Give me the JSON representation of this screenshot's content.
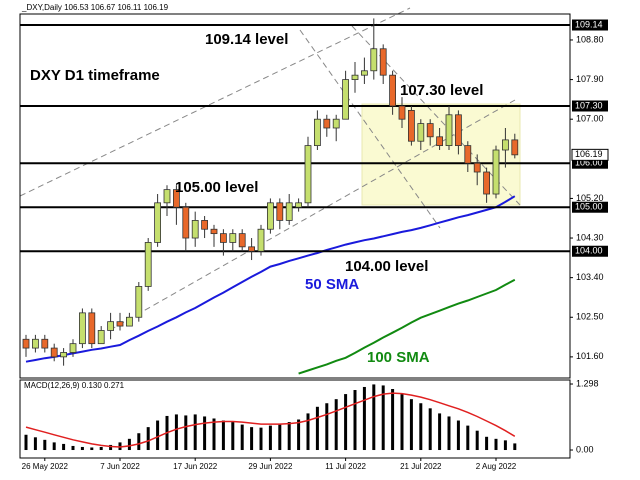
{
  "chart_data": {
    "type": "candlestick",
    "title": "_DXY,Daily  106.53 106.67 106.11 106.19",
    "subtitle": "DXY D1 timeframe",
    "categories": [
      null,
      null,
      "26 May 2022",
      null,
      null,
      null,
      null,
      null,
      null,
      null,
      "7 Jun 2022",
      null,
      null,
      null,
      null,
      null,
      null,
      null,
      "17 Jun 2022",
      null,
      null,
      null,
      null,
      null,
      null,
      null,
      "29 Jun 2022",
      null,
      null,
      null,
      null,
      null,
      null,
      null,
      "11 Jul 2022",
      null,
      null,
      null,
      null,
      null,
      null,
      null,
      "21 Jul 2022",
      null,
      null,
      null,
      null,
      null,
      null,
      null,
      "2 Aug 2022",
      null,
      null
    ],
    "open": [
      102.0,
      101.8,
      102.0,
      101.8,
      101.6,
      101.7,
      101.9,
      102.6,
      101.9,
      102.2,
      102.4,
      102.3,
      102.5,
      103.2,
      104.2,
      105.1,
      105.4,
      105.0,
      104.3,
      104.7,
      104.5,
      104.4,
      104.2,
      104.4,
      104.1,
      104.0,
      104.5,
      105.1,
      104.7,
      105.0,
      105.1,
      106.4,
      107.0,
      106.8,
      107.0,
      107.9,
      108.0,
      108.1,
      108.6,
      108.0,
      107.3,
      107.2,
      106.5,
      106.9,
      106.6,
      106.4,
      107.1,
      106.4,
      106.0,
      105.8,
      105.3,
      106.3,
      106.53
    ],
    "high": [
      102.1,
      102.1,
      102.1,
      101.9,
      101.8,
      102.0,
      102.7,
      102.7,
      102.3,
      102.6,
      102.6,
      102.6,
      103.3,
      104.3,
      105.3,
      105.5,
      105.5,
      105.1,
      104.9,
      104.8,
      104.6,
      104.5,
      104.5,
      104.5,
      104.3,
      104.6,
      105.2,
      105.2,
      105.3,
      105.2,
      106.6,
      107.2,
      107.1,
      107.1,
      108.1,
      108.3,
      108.4,
      109.29,
      108.7,
      108.1,
      107.5,
      107.3,
      107.0,
      107.0,
      106.8,
      107.3,
      107.2,
      106.5,
      106.2,
      105.9,
      106.4,
      106.8,
      106.67
    ],
    "low": [
      101.6,
      101.7,
      101.7,
      101.5,
      101.4,
      101.6,
      101.8,
      101.8,
      101.9,
      102.0,
      102.2,
      102.3,
      102.4,
      103.1,
      104.1,
      104.8,
      104.6,
      104.0,
      104.1,
      104.3,
      104.1,
      103.9,
      104.0,
      104.0,
      103.8,
      103.9,
      104.4,
      104.5,
      104.6,
      104.9,
      105.0,
      106.3,
      106.6,
      106.5,
      107.0,
      107.6,
      107.8,
      107.9,
      107.8,
      107.1,
      106.8,
      106.4,
      106.3,
      106.4,
      106.3,
      106.3,
      106.2,
      105.8,
      105.5,
      105.1,
      105.2,
      105.9,
      106.11
    ],
    "close": [
      101.8,
      102.0,
      101.8,
      101.6,
      101.7,
      101.9,
      102.6,
      101.9,
      102.2,
      102.4,
      102.3,
      102.5,
      103.2,
      104.2,
      105.1,
      105.4,
      105.0,
      104.3,
      104.7,
      104.5,
      104.4,
      104.2,
      104.4,
      104.1,
      104.0,
      104.5,
      105.1,
      104.7,
      105.1,
      105.1,
      106.4,
      107.0,
      106.8,
      107.0,
      107.9,
      108.0,
      108.1,
      108.6,
      108.0,
      107.3,
      107.0,
      106.5,
      106.9,
      106.6,
      106.4,
      107.1,
      106.4,
      106.0,
      105.8,
      105.3,
      106.3,
      106.53,
      106.19
    ],
    "up_color": "#c5df6e",
    "down_color": "#e8682a",
    "series": [
      {
        "name": "50 SMA",
        "color": "#1a1adc",
        "values": [
          101.49,
          101.53,
          101.57,
          101.6,
          101.64,
          101.68,
          101.72,
          101.76,
          101.79,
          101.83,
          101.87,
          101.98,
          102.08,
          102.19,
          102.29,
          102.4,
          102.5,
          102.61,
          102.71,
          102.83,
          102.95,
          103.06,
          103.18,
          103.3,
          103.42,
          103.53,
          103.65,
          103.71,
          103.78,
          103.84,
          103.9,
          103.96,
          104.03,
          104.09,
          104.15,
          104.2,
          104.25,
          104.29,
          104.34,
          104.39,
          104.44,
          104.48,
          104.53,
          104.59,
          104.65,
          104.71,
          104.77,
          104.82,
          104.88,
          104.94,
          105.0,
          105.12,
          105.25
        ]
      },
      {
        "name": "100 SMA",
        "color": "#118a11",
        "values": [
          null,
          null,
          null,
          null,
          null,
          null,
          null,
          null,
          null,
          null,
          null,
          null,
          null,
          null,
          null,
          null,
          null,
          null,
          null,
          null,
          null,
          null,
          null,
          null,
          null,
          null,
          null,
          null,
          null,
          101.22,
          101.29,
          101.36,
          101.43,
          101.51,
          101.58,
          101.69,
          101.81,
          101.92,
          102.04,
          102.15,
          102.26,
          102.38,
          102.49,
          102.57,
          102.65,
          102.73,
          102.81,
          102.88,
          102.96,
          103.04,
          103.12,
          103.24,
          103.35
        ]
      }
    ],
    "levels": [
      109.14,
      {
        "value": 107.3,
        "label": "107.30"
      },
      {
        "value": 106.0,
        "label": "106.00"
      },
      {
        "value": 105.0,
        "label": "105.00"
      },
      {
        "value": 104.0,
        "label": "104.00"
      }
    ],
    "annotations": [
      {
        "text": "109.14 level"
      },
      {
        "text": "107.30 level"
      },
      {
        "text": "105.00 level"
      },
      {
        "text": "104.00 level"
      }
    ],
    "ylim": [
      101.12,
      109.39
    ],
    "yticks": [
      {
        "value": 108.8,
        "label": "108.80"
      },
      {
        "value": 107.9,
        "label": "107.90"
      },
      {
        "value": 107.0,
        "label": "107.00"
      },
      {
        "value": 105.2,
        "label": "105.20"
      },
      {
        "value": 104.3,
        "label": "104.30"
      },
      {
        "value": 103.4,
        "label": "103.40"
      },
      {
        "value": 102.5,
        "label": "102.50"
      },
      {
        "value": 101.6,
        "label": "101.60"
      }
    ],
    "macd": {
      "label": "MACD(12,26,9) 0.130 0.271",
      "histogram": [
        0.3,
        0.25,
        0.2,
        0.15,
        0.12,
        0.08,
        0.06,
        0.05,
        0.06,
        0.1,
        0.15,
        0.22,
        0.33,
        0.45,
        0.58,
        0.67,
        0.7,
        0.68,
        0.7,
        0.66,
        0.62,
        0.58,
        0.55,
        0.5,
        0.45,
        0.44,
        0.48,
        0.5,
        0.55,
        0.6,
        0.72,
        0.85,
        0.92,
        1.0,
        1.1,
        1.18,
        1.24,
        1.29,
        1.27,
        1.2,
        1.1,
        1.0,
        0.92,
        0.82,
        0.72,
        0.66,
        0.58,
        0.48,
        0.38,
        0.26,
        0.22,
        0.19,
        0.13
      ],
      "signal": [
        0.45,
        0.4,
        0.35,
        0.3,
        0.25,
        0.2,
        0.16,
        0.12,
        0.09,
        0.07,
        0.06,
        0.08,
        0.12,
        0.18,
        0.26,
        0.34,
        0.41,
        0.46,
        0.5,
        0.53,
        0.55,
        0.56,
        0.56,
        0.55,
        0.53,
        0.51,
        0.51,
        0.51,
        0.52,
        0.54,
        0.58,
        0.64,
        0.7,
        0.77,
        0.84,
        0.91,
        0.98,
        1.05,
        1.1,
        1.12,
        1.11,
        1.08,
        1.04,
        0.99,
        0.93,
        0.87,
        0.81,
        0.74,
        0.66,
        0.57,
        0.48,
        0.38,
        0.27
      ],
      "histogram_color": "#000000",
      "signal_color": "#e02020",
      "ylim": [
        -0.157,
        1.377
      ],
      "yticks": [
        1.298,
        {
          "value": 0,
          "label": "0.00"
        }
      ]
    }
  }
}
